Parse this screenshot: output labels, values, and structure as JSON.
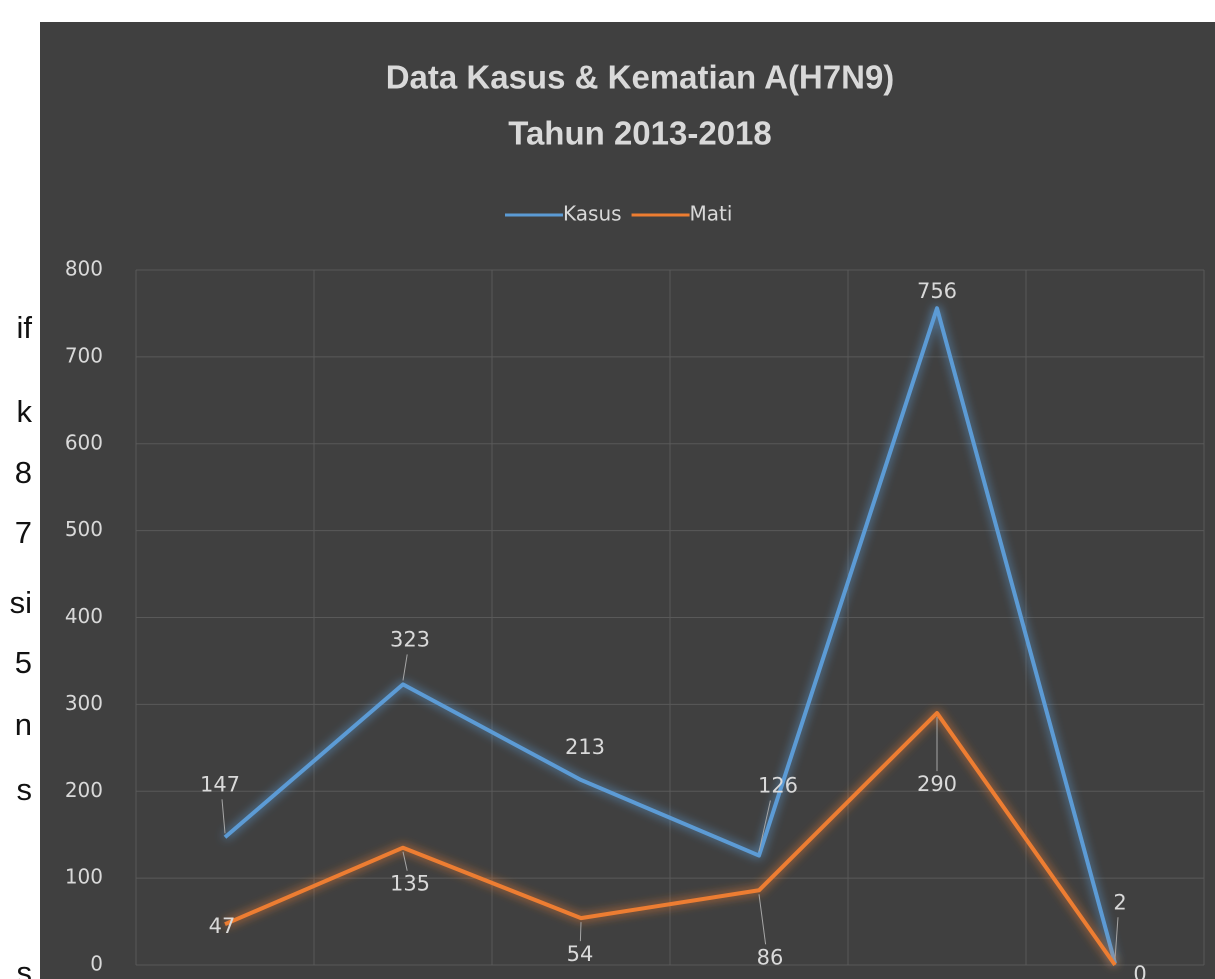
{
  "document_fragments": [
    "if",
    "k",
    "8",
    "7",
    "si",
    "5",
    "n",
    "s",
    "s"
  ],
  "chart_data": {
    "type": "line",
    "title": "Data Kasus & Kematian A(H7N9)",
    "subtitle": "Tahun 2013-2018",
    "categories": [
      null,
      null,
      null,
      null,
      null,
      null
    ],
    "series": [
      {
        "name": "Kasus",
        "color": "#5b9bd5",
        "values": [
          147,
          323,
          213,
          126,
          756,
          2
        ]
      },
      {
        "name": "Mati",
        "color": "#ed7d31",
        "values": [
          47,
          135,
          54,
          86,
          290,
          0
        ]
      }
    ],
    "ylim": [
      0,
      800
    ],
    "yticks": [
      0,
      100,
      200,
      300,
      400,
      500,
      600,
      700,
      800
    ],
    "grid": true,
    "legend": "top"
  }
}
